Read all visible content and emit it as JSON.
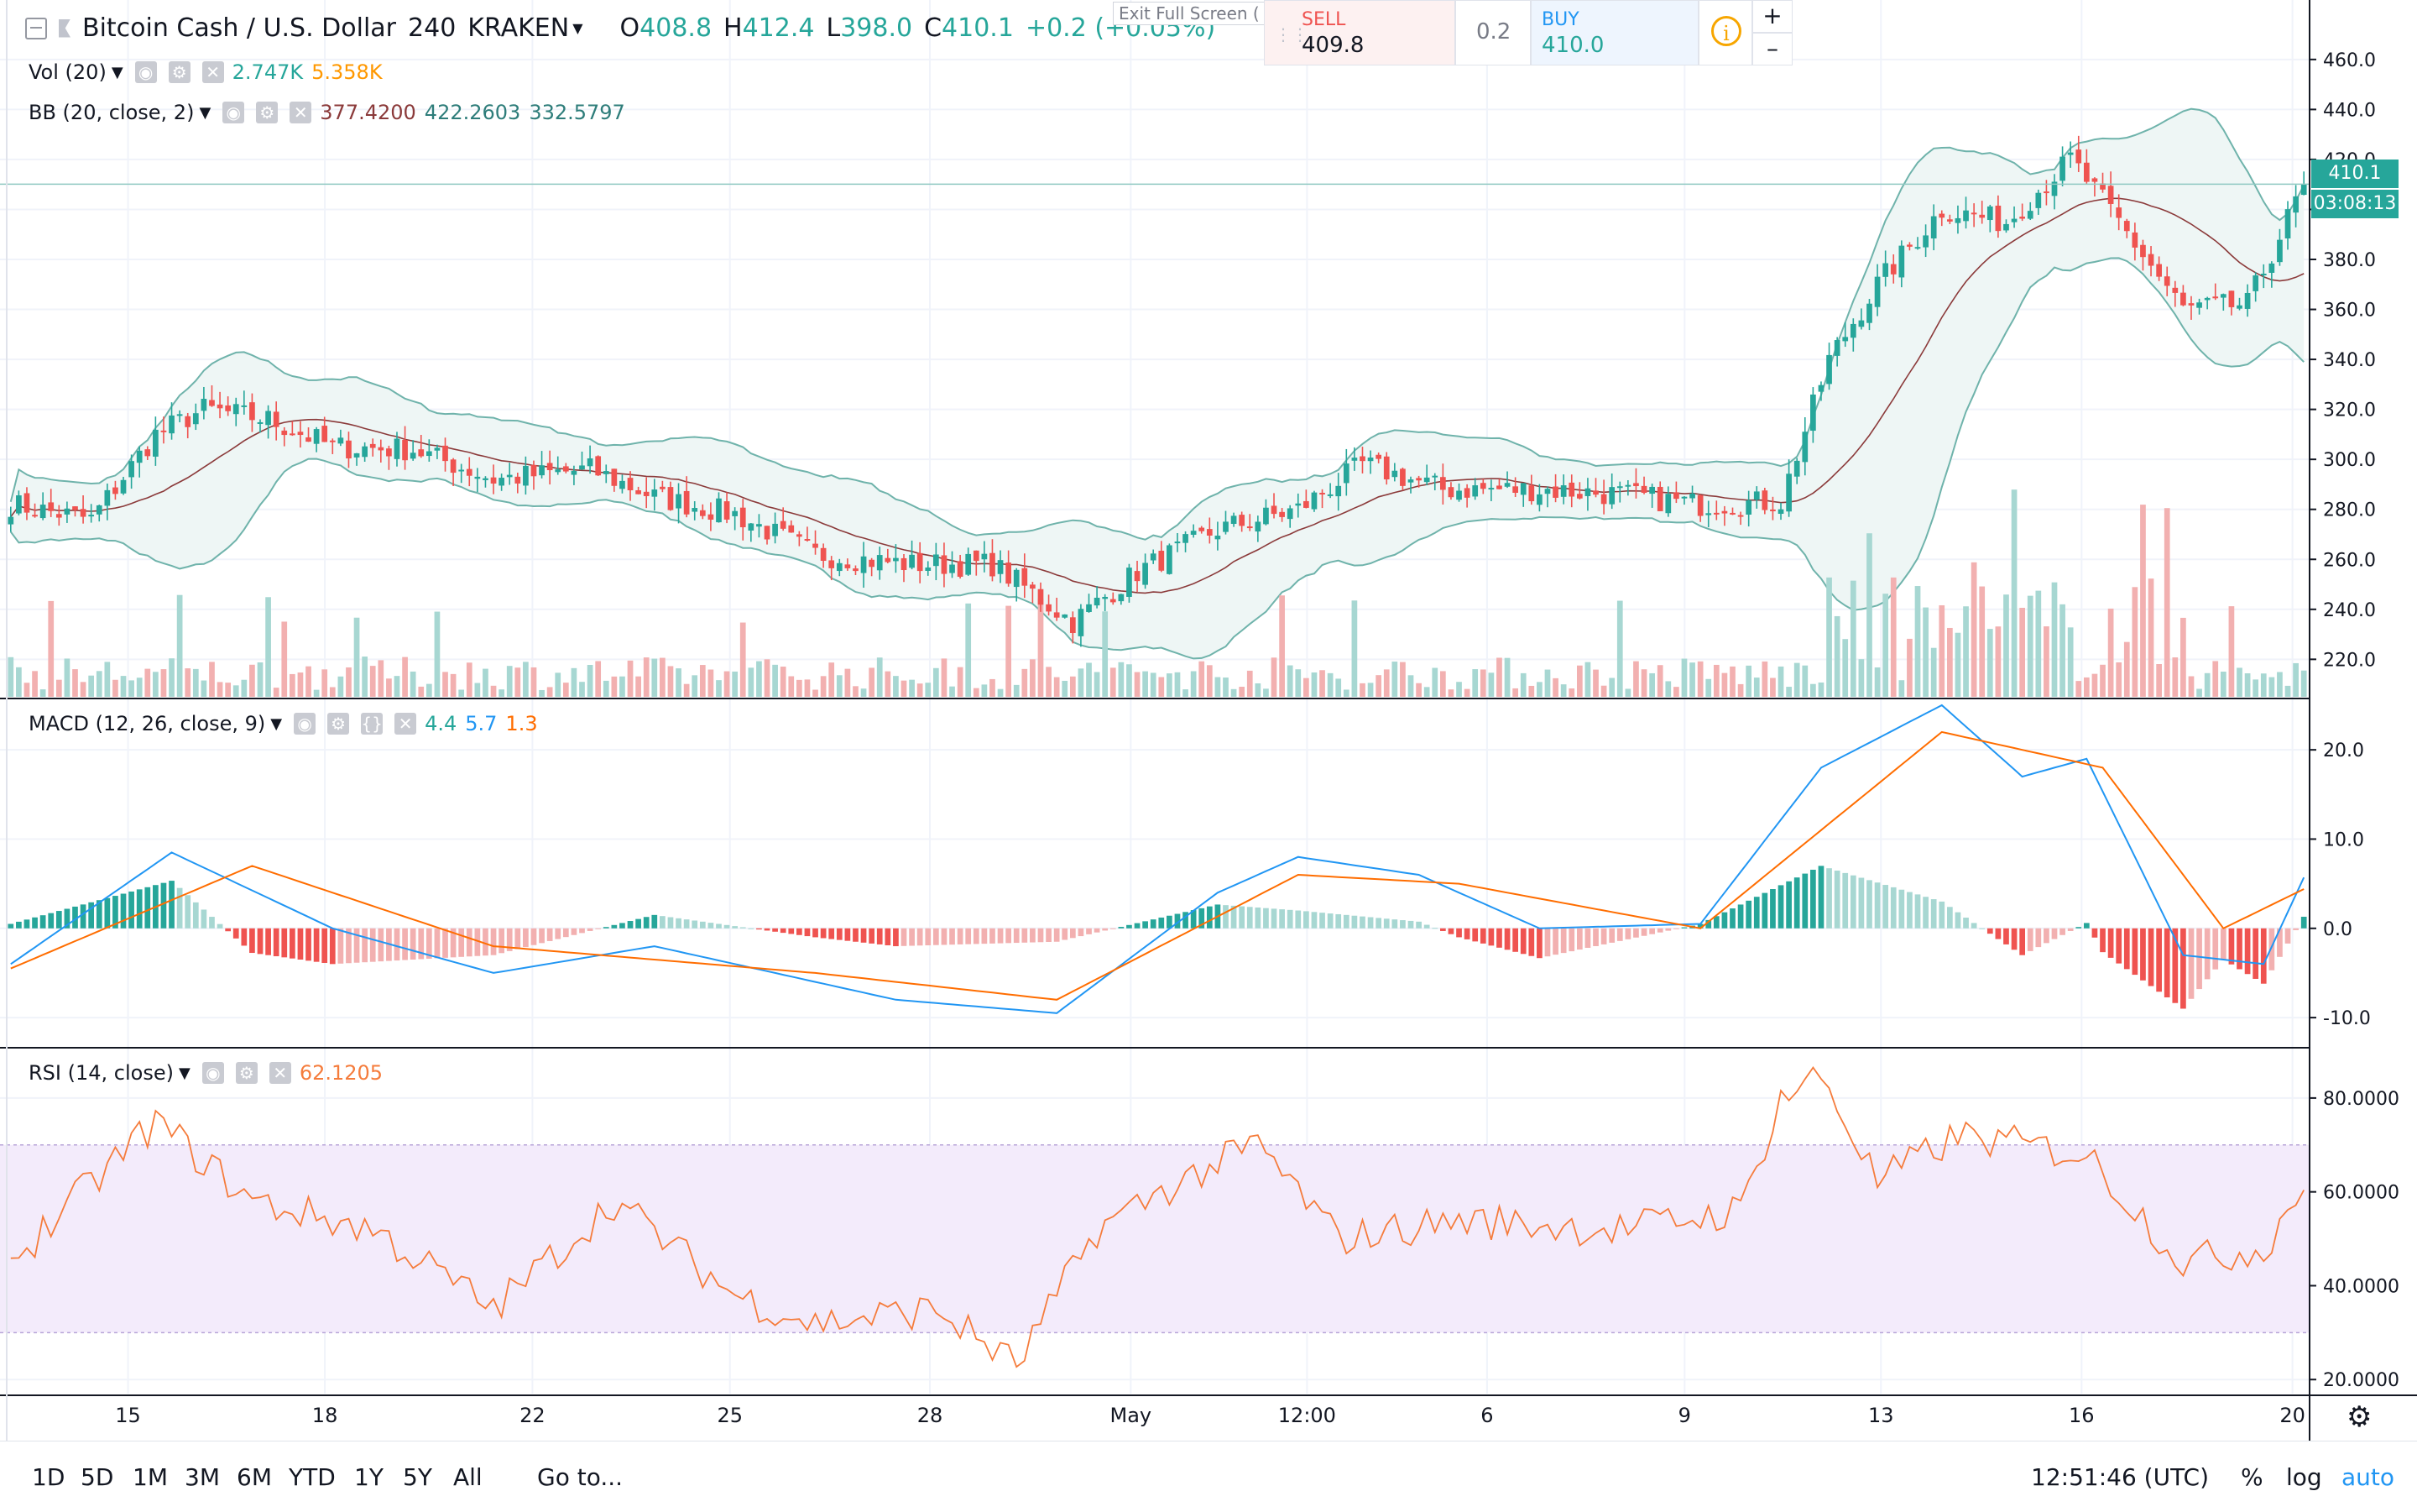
{
  "header": {
    "symbol": "Bitcoin Cash / U.S. Dollar",
    "interval": "240",
    "exchange": "KRAKEN",
    "open_label": "O",
    "open": "408.8",
    "high_label": "H",
    "high": "412.4",
    "low_label": "L",
    "low": "398.0",
    "close_label": "C",
    "close": "410.1",
    "change": "+0.2 (+0.05%)",
    "exit_fullscreen": "Exit Full Screen ("
  },
  "trade": {
    "sell_label": "SELL",
    "sell_price": "409.8",
    "spread": "0.2",
    "buy_label": "BUY",
    "buy_price": "410.0",
    "zoom_in": "+",
    "zoom_out": "–",
    "info": "i"
  },
  "indicators": {
    "vol": {
      "label": "Vol (20)",
      "v1": "2.747K",
      "v2": "5.358K"
    },
    "bb": {
      "label": "BB (20, close, 2)",
      "v1": "377.4200",
      "v2": "422.2603",
      "v3": "332.5797"
    },
    "macd": {
      "label": "MACD (12, 26, close, 9)",
      "v1": "4.4",
      "v2": "5.7",
      "v3": "1.3"
    },
    "rsi": {
      "label": "RSI (14, close)",
      "v1": "62.1205"
    }
  },
  "price_tag": {
    "price": "410.1",
    "countdown": "03:08:13"
  },
  "bottom_bar": {
    "ranges": [
      "1D",
      "5D",
      "1M",
      "3M",
      "6M",
      "YTD",
      "1Y",
      "5Y",
      "All"
    ],
    "goto": "Go to...",
    "time": "12:51:46 (UTC)",
    "pct": "%",
    "log": "log",
    "auto": "auto"
  },
  "colors": {
    "up": "#26a69a",
    "down": "#ef5350",
    "up_vol": "#a7d7d2",
    "down_vol": "#f2b0b0",
    "macd_line": "#2196f3",
    "signal_line": "#ff6d00",
    "rsi_line": "#f57c3c",
    "rsi_band": "#f3ebfb",
    "bb_band": "#eef6f5",
    "bb_line": "#6fb3ab",
    "basis": "#8b3a3a"
  },
  "chart_data": [
    {
      "type": "candlestick",
      "title": "Bitcoin Cash / U.S. Dollar, 240, KRAKEN",
      "x_ticks": [
        "15",
        "18",
        "22",
        "25",
        "28",
        "May",
        "12:00",
        "6",
        "9",
        "13",
        "16",
        "20"
      ],
      "y_ticks": [
        "460.0",
        "440.0",
        "420.0",
        "400.0",
        "380.0",
        "360.0",
        "340.0",
        "320.0",
        "300.0",
        "280.0",
        "260.0",
        "240.0",
        "220.0"
      ],
      "ylim": [
        205,
        467
      ],
      "close_trace": [
        {
          "i": 0,
          "v": 282
        },
        {
          "i": 10,
          "v": 276
        },
        {
          "i": 18,
          "v": 310
        },
        {
          "i": 24,
          "v": 320
        },
        {
          "i": 32,
          "v": 316
        },
        {
          "i": 40,
          "v": 305
        },
        {
          "i": 50,
          "v": 304
        },
        {
          "i": 60,
          "v": 292
        },
        {
          "i": 72,
          "v": 296
        },
        {
          "i": 80,
          "v": 285
        },
        {
          "i": 90,
          "v": 278
        },
        {
          "i": 100,
          "v": 262
        },
        {
          "i": 112,
          "v": 258
        },
        {
          "i": 122,
          "v": 258
        },
        {
          "i": 132,
          "v": 235
        },
        {
          "i": 140,
          "v": 255
        },
        {
          "i": 150,
          "v": 272
        },
        {
          "i": 160,
          "v": 280
        },
        {
          "i": 168,
          "v": 298
        },
        {
          "i": 178,
          "v": 288
        },
        {
          "i": 190,
          "v": 288
        },
        {
          "i": 200,
          "v": 286
        },
        {
          "i": 210,
          "v": 282
        },
        {
          "i": 220,
          "v": 283
        },
        {
          "i": 226,
          "v": 340
        },
        {
          "i": 232,
          "v": 370
        },
        {
          "i": 240,
          "v": 400
        },
        {
          "i": 248,
          "v": 395
        },
        {
          "i": 256,
          "v": 420
        },
        {
          "i": 262,
          "v": 395
        },
        {
          "i": 270,
          "v": 360
        },
        {
          "i": 278,
          "v": 362
        },
        {
          "i": 285,
          "v": 410
        }
      ],
      "volume_note": "Vol (20)"
    },
    {
      "type": "line",
      "title": "MACD (12, 26, close, 9)",
      "y_ticks": [
        "20.0",
        "10.0",
        "0.0",
        "-10.0"
      ],
      "ylim": [
        -13,
        25
      ],
      "macd_trace": [
        {
          "i": 0,
          "v": -4
        },
        {
          "i": 20,
          "v": 8.5
        },
        {
          "i": 40,
          "v": 0
        },
        {
          "i": 60,
          "v": -5
        },
        {
          "i": 80,
          "v": -2
        },
        {
          "i": 95,
          "v": -5
        },
        {
          "i": 110,
          "v": -8
        },
        {
          "i": 130,
          "v": -9.5
        },
        {
          "i": 150,
          "v": 4
        },
        {
          "i": 160,
          "v": 8
        },
        {
          "i": 175,
          "v": 6
        },
        {
          "i": 190,
          "v": 0
        },
        {
          "i": 210,
          "v": 0.5
        },
        {
          "i": 225,
          "v": 18
        },
        {
          "i": 240,
          "v": 25
        },
        {
          "i": 250,
          "v": 17
        },
        {
          "i": 258,
          "v": 19
        },
        {
          "i": 270,
          "v": -3
        },
        {
          "i": 280,
          "v": -4
        },
        {
          "i": 285,
          "v": 5.7
        }
      ],
      "signal_trace": [
        {
          "i": 0,
          "v": -4.5
        },
        {
          "i": 30,
          "v": 7
        },
        {
          "i": 60,
          "v": -2
        },
        {
          "i": 100,
          "v": -5
        },
        {
          "i": 130,
          "v": -8
        },
        {
          "i": 160,
          "v": 6
        },
        {
          "i": 180,
          "v": 5
        },
        {
          "i": 210,
          "v": 0
        },
        {
          "i": 240,
          "v": 22
        },
        {
          "i": 260,
          "v": 18
        },
        {
          "i": 275,
          "v": 0
        },
        {
          "i": 285,
          "v": 4.4
        }
      ]
    },
    {
      "type": "line",
      "title": "RSI (14, close)",
      "y_ticks": [
        "80.0000",
        "60.0000",
        "40.0000",
        "20.0000"
      ],
      "ylim": [
        17,
        90
      ],
      "band": [
        30,
        70
      ],
      "rsi_trace": [
        {
          "i": 0,
          "v": 45
        },
        {
          "i": 12,
          "v": 65
        },
        {
          "i": 18,
          "v": 75
        },
        {
          "i": 30,
          "v": 58
        },
        {
          "i": 45,
          "v": 52
        },
        {
          "i": 60,
          "v": 35
        },
        {
          "i": 75,
          "v": 58
        },
        {
          "i": 90,
          "v": 38
        },
        {
          "i": 100,
          "v": 32
        },
        {
          "i": 115,
          "v": 35
        },
        {
          "i": 125,
          "v": 23
        },
        {
          "i": 135,
          "v": 52
        },
        {
          "i": 145,
          "v": 62
        },
        {
          "i": 155,
          "v": 70
        },
        {
          "i": 165,
          "v": 50
        },
        {
          "i": 180,
          "v": 54
        },
        {
          "i": 200,
          "v": 52
        },
        {
          "i": 215,
          "v": 56
        },
        {
          "i": 220,
          "v": 80
        },
        {
          "i": 225,
          "v": 85
        },
        {
          "i": 232,
          "v": 62
        },
        {
          "i": 242,
          "v": 72
        },
        {
          "i": 258,
          "v": 68
        },
        {
          "i": 270,
          "v": 45
        },
        {
          "i": 280,
          "v": 48
        },
        {
          "i": 285,
          "v": 62
        }
      ]
    }
  ]
}
